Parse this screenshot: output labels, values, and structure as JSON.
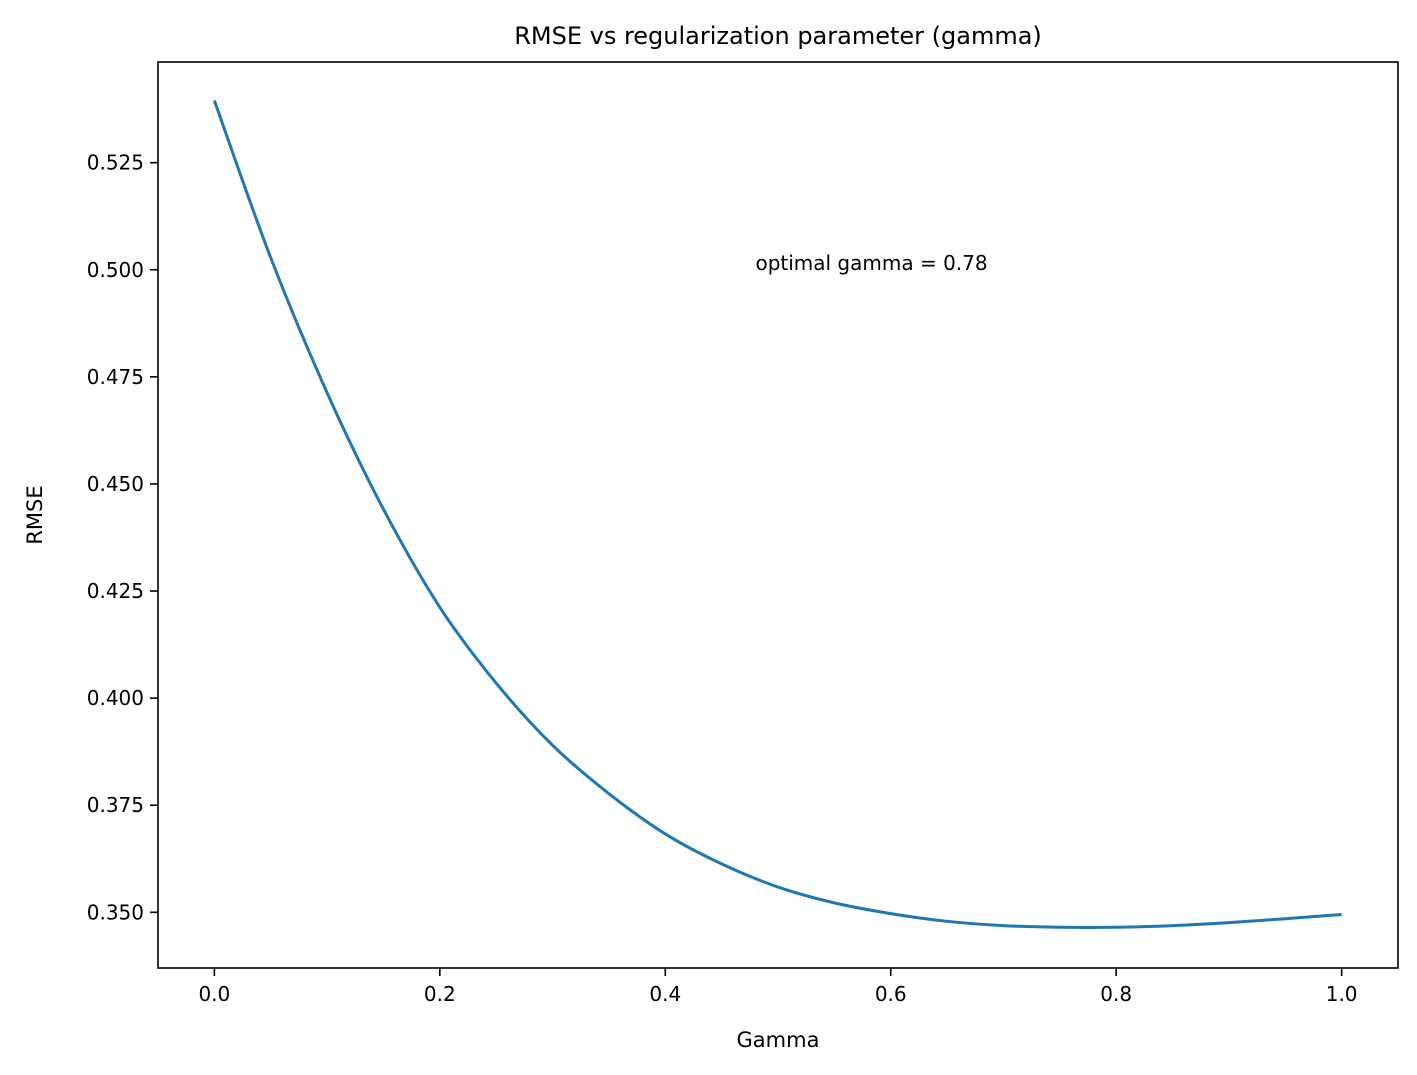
{
  "chart_data": {
    "type": "line",
    "title": "RMSE vs regularization parameter (gamma)",
    "xlabel": "Gamma",
    "ylabel": "RMSE",
    "xlim": [
      -0.05,
      1.05
    ],
    "ylim": [
      0.337,
      0.5485
    ],
    "x_ticks": [
      0.0,
      0.2,
      0.4,
      0.6,
      0.8,
      1.0
    ],
    "x_tick_labels": [
      "0.0",
      "0.2",
      "0.4",
      "0.6",
      "0.8",
      "1.0"
    ],
    "y_ticks": [
      0.35,
      0.375,
      0.4,
      0.425,
      0.45,
      0.475,
      0.5,
      0.525
    ],
    "y_tick_labels": [
      "0.350",
      "0.375",
      "0.400",
      "0.425",
      "0.450",
      "0.475",
      "0.500",
      "0.525"
    ],
    "grid": false,
    "series": [
      {
        "color": "#1f77b4",
        "x": [
          0.0,
          0.05,
          0.1,
          0.15,
          0.2,
          0.25,
          0.3,
          0.35,
          0.4,
          0.45,
          0.5,
          0.55,
          0.6,
          0.65,
          0.7,
          0.75,
          0.8,
          0.85,
          0.9,
          0.95,
          1.0
        ],
        "y": [
          0.5395,
          0.5028,
          0.4713,
          0.4441,
          0.4212,
          0.4035,
          0.389,
          0.3777,
          0.3683,
          0.3613,
          0.3559,
          0.3522,
          0.3497,
          0.3479,
          0.3469,
          0.3465,
          0.3465,
          0.3469,
          0.3476,
          0.3485,
          0.3495
        ]
      }
    ],
    "annotation": {
      "text": "optimal gamma = 0.78",
      "x": 0.48,
      "y": 0.5
    }
  }
}
